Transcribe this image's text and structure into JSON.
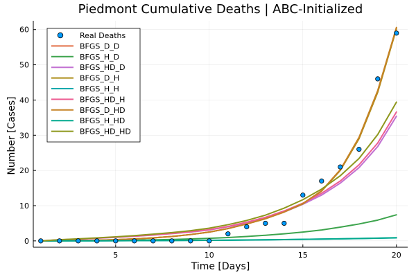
{
  "chart_data": {
    "type": "line",
    "title": "Piedmont Cumulative Deaths | ABC-Initialized",
    "xlabel": "Time [Days]",
    "ylabel": "Number [Cases]",
    "xlim": [
      0.6,
      20.6
    ],
    "ylim": [
      -1.8,
      62.5
    ],
    "xticks": [
      5,
      10,
      15,
      20
    ],
    "yticks": [
      0,
      10,
      20,
      30,
      40,
      50,
      60
    ],
    "grid": true,
    "legend_position": "top-left",
    "scatter": {
      "name": "Real Deaths",
      "color": "#009AFA",
      "x": [
        1,
        2,
        3,
        4,
        5,
        6,
        7,
        8,
        9,
        10,
        11,
        12,
        13,
        14,
        15,
        16,
        17,
        18,
        19,
        20
      ],
      "y": [
        0,
        0,
        0,
        0,
        0,
        0,
        0,
        0,
        0,
        0,
        2,
        4,
        5,
        5,
        13,
        17,
        21,
        26,
        46,
        59
      ]
    },
    "x": [
      1,
      2,
      3,
      4,
      5,
      6,
      7,
      8,
      9,
      10,
      11,
      12,
      13,
      14,
      15,
      16,
      17,
      18,
      19,
      20
    ],
    "series": [
      {
        "name": "BFGS_D_D",
        "color": "#E26F46",
        "values": [
          0,
          0.05,
          0.12,
          0.2,
          0.35,
          0.55,
          0.85,
          1.25,
          1.8,
          2.5,
          3.5,
          4.8,
          6.3,
          8.2,
          10.6,
          14.2,
          20.2,
          29.2,
          42.5,
          60.5
        ]
      },
      {
        "name": "BFGS_H_D",
        "color": "#3DA44D",
        "values": [
          0,
          0.03,
          0.06,
          0.1,
          0.15,
          0.22,
          0.3,
          0.4,
          0.55,
          0.72,
          0.95,
          1.25,
          1.6,
          2.0,
          2.5,
          3.1,
          3.9,
          4.8,
          5.9,
          7.4
        ]
      },
      {
        "name": "BFGS_HD_D",
        "color": "#C271D2",
        "values": [
          0,
          0.3,
          0.5,
          0.75,
          1.0,
          1.3,
          1.65,
          2.05,
          2.5,
          3.1,
          4.0,
          5.1,
          6.5,
          8.2,
          10.4,
          13.0,
          16.4,
          20.8,
          26.8,
          35.4
        ]
      },
      {
        "name": "BFGS_D_H",
        "color": "#AC8D18",
        "values": [
          0,
          0.05,
          0.12,
          0.2,
          0.35,
          0.55,
          0.85,
          1.25,
          1.8,
          2.5,
          3.5,
          4.8,
          6.3,
          8.2,
          10.5,
          14.1,
          20.0,
          29.0,
          42.2,
          60.2
        ]
      },
      {
        "name": "BFGS_H_H",
        "color": "#00A9AD",
        "values": [
          0,
          0.01,
          0.02,
          0.03,
          0.04,
          0.06,
          0.08,
          0.1,
          0.13,
          0.16,
          0.2,
          0.25,
          0.3,
          0.36,
          0.43,
          0.5,
          0.58,
          0.66,
          0.75,
          0.85
        ]
      },
      {
        "name": "BFGS_HD_H",
        "color": "#ED5E93",
        "values": [
          0,
          0.32,
          0.52,
          0.78,
          1.05,
          1.35,
          1.7,
          2.1,
          2.6,
          3.2,
          4.1,
          5.3,
          6.7,
          8.5,
          10.7,
          13.5,
          17.0,
          21.6,
          27.8,
          36.6
        ]
      },
      {
        "name": "BFGS_D_HD",
        "color": "#C68225",
        "values": [
          0,
          0.05,
          0.12,
          0.2,
          0.35,
          0.55,
          0.85,
          1.25,
          1.8,
          2.5,
          3.5,
          4.8,
          6.3,
          8.2,
          10.6,
          14.2,
          20.2,
          29.4,
          42.7,
          60.6
        ]
      },
      {
        "name": "BFGS_H_HD",
        "color": "#00A98D",
        "values": [
          0,
          0.01,
          0.02,
          0.03,
          0.045,
          0.065,
          0.085,
          0.11,
          0.14,
          0.17,
          0.21,
          0.26,
          0.31,
          0.37,
          0.44,
          0.51,
          0.59,
          0.68,
          0.78,
          0.9
        ]
      },
      {
        "name": "BFGS_HD_HD",
        "color": "#8E971D",
        "values": [
          0,
          0.35,
          0.58,
          0.85,
          1.15,
          1.5,
          1.9,
          2.35,
          2.9,
          3.6,
          4.6,
          5.8,
          7.3,
          9.3,
          11.7,
          14.7,
          18.5,
          23.4,
          30.2,
          39.4
        ]
      }
    ]
  }
}
